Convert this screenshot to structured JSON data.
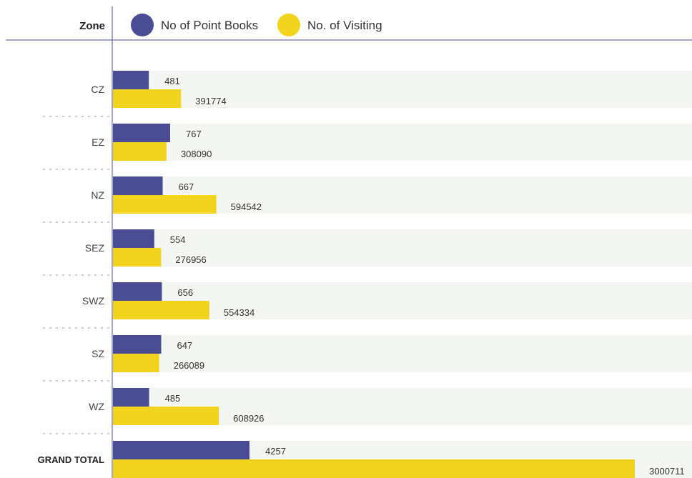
{
  "chart_data": {
    "type": "bar",
    "orientation": "horizontal",
    "header_label": "Zone",
    "legend_position": "top",
    "categories": [
      "CZ",
      "EZ",
      "NZ",
      "SEZ",
      "SWZ",
      "SZ",
      "WZ",
      "GRAND TOTAL"
    ],
    "series": [
      {
        "name": "No of Point Books",
        "color": "#4a4d94",
        "values": [
          481,
          767,
          667,
          554,
          656,
          647,
          485,
          4257
        ]
      },
      {
        "name": "No. of Visiting",
        "color": "#f2d31e",
        "values": [
          391774,
          308090,
          594542,
          276956,
          554334,
          266089,
          608926,
          3000711
        ]
      }
    ],
    "colors": {
      "row_background": "#f4f6f4",
      "axis_line": "#4a4d94",
      "separator": "#999999"
    }
  }
}
